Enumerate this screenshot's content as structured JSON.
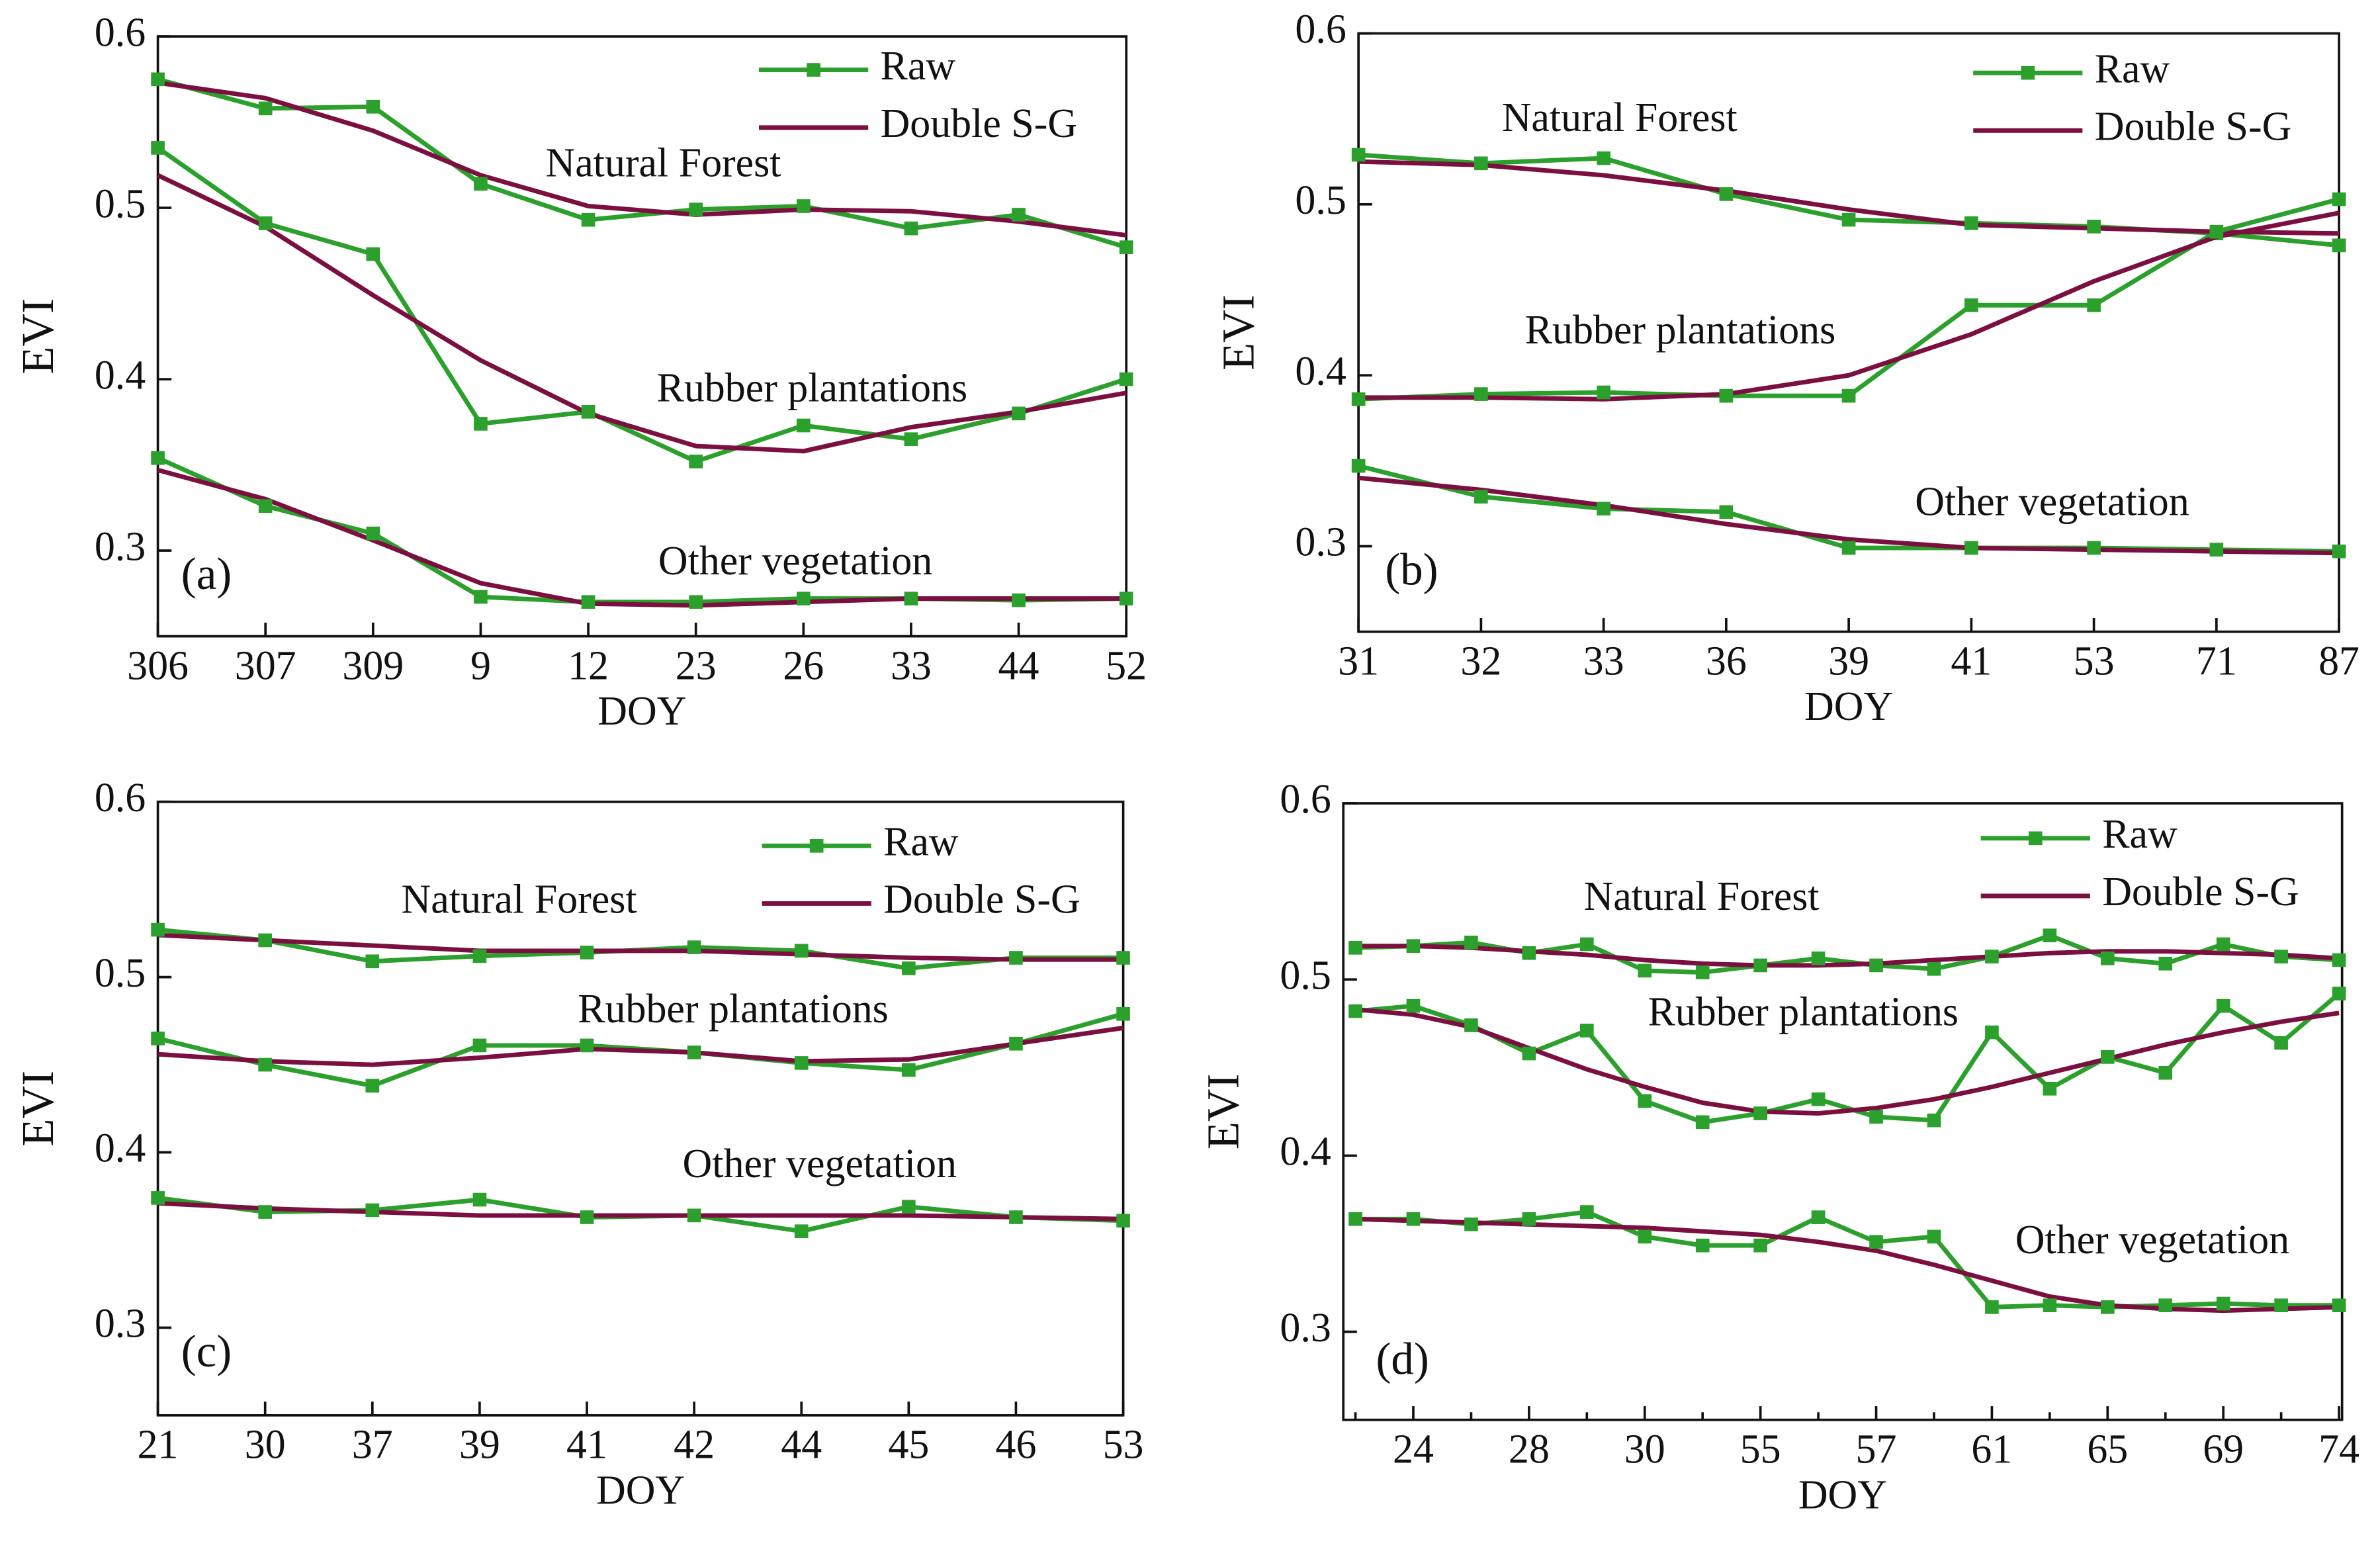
{
  "chart_data": [
    {
      "type": "line",
      "panel_label": "(a)",
      "x_label": "DOY",
      "y_label": "EVI",
      "categories": [
        "306",
        "307",
        "309",
        "9",
        "12",
        "23",
        "26",
        "33",
        "44",
        "52"
      ],
      "ylim": [
        0.25,
        0.6
      ],
      "yticks": [
        0.3,
        0.4,
        0.5,
        0.6
      ],
      "legend": [
        {
          "name": "Raw",
          "color": "#2ca02c",
          "marker": "square"
        },
        {
          "name": "Double S-G",
          "color": "#7b1040"
        }
      ],
      "series": [
        {
          "name": "Natural Forest",
          "raw": [
            0.575,
            0.558,
            0.559,
            0.514,
            0.493,
            0.499,
            0.501,
            0.488,
            0.496,
            0.477
          ],
          "double_sg": [
            0.573,
            0.564,
            0.545,
            0.519,
            0.501,
            0.496,
            0.499,
            0.498,
            0.492,
            0.484
          ]
        },
        {
          "name": "Rubber plantations",
          "raw": [
            0.535,
            0.491,
            0.473,
            0.374,
            0.381,
            0.352,
            0.373,
            0.365,
            0.38,
            0.4
          ],
          "double_sg": [
            0.519,
            0.489,
            0.449,
            0.411,
            0.38,
            0.361,
            0.358,
            0.372,
            0.381,
            0.392
          ]
        },
        {
          "name": "Other vegetation",
          "raw": [
            0.354,
            0.326,
            0.31,
            0.273,
            0.27,
            0.27,
            0.272,
            0.272,
            0.271,
            0.272
          ],
          "double_sg": [
            0.347,
            0.33,
            0.306,
            0.281,
            0.269,
            0.268,
            0.27,
            0.272,
            0.272,
            0.272
          ]
        }
      ]
    },
    {
      "type": "line",
      "panel_label": "(b)",
      "x_label": "DOY",
      "y_label": "EVI",
      "categories": [
        "31",
        "32",
        "33",
        "36",
        "39",
        "41",
        "53",
        "71",
        "87"
      ],
      "ylim": [
        0.25,
        0.6
      ],
      "yticks": [
        0.3,
        0.4,
        0.5,
        0.6
      ],
      "legend": [
        {
          "name": "Raw",
          "color": "#2ca02c",
          "marker": "square"
        },
        {
          "name": "Double S-G",
          "color": "#7b1040"
        }
      ],
      "series": [
        {
          "name": "Natural Forest",
          "raw": [
            0.529,
            0.524,
            0.527,
            0.506,
            0.491,
            0.489,
            0.487,
            0.483,
            0.476
          ],
          "double_sg": [
            0.525,
            0.523,
            0.517,
            0.508,
            0.497,
            0.488,
            0.486,
            0.484,
            0.483
          ]
        },
        {
          "name": "Rubber plantations",
          "raw": [
            0.386,
            0.389,
            0.39,
            0.388,
            0.388,
            0.441,
            0.441,
            0.484,
            0.503
          ],
          "double_sg": [
            0.387,
            0.387,
            0.386,
            0.389,
            0.4,
            0.424,
            0.455,
            0.481,
            0.495
          ]
        },
        {
          "name": "Other vegetation",
          "raw": [
            0.347,
            0.329,
            0.322,
            0.32,
            0.299,
            0.299,
            0.299,
            0.298,
            0.297
          ],
          "double_sg": [
            0.34,
            0.333,
            0.324,
            0.313,
            0.304,
            0.299,
            0.298,
            0.297,
            0.296
          ]
        }
      ]
    },
    {
      "type": "line",
      "panel_label": "(c)",
      "x_label": "DOY",
      "y_label": "EVI",
      "categories": [
        "21",
        "30",
        "37",
        "39",
        "41",
        "42",
        "44",
        "45",
        "46",
        "53"
      ],
      "ylim": [
        0.25,
        0.6
      ],
      "yticks": [
        0.3,
        0.4,
        0.5,
        0.6
      ],
      "legend": [
        {
          "name": "Raw",
          "color": "#2ca02c",
          "marker": "square"
        },
        {
          "name": "Double S-G",
          "color": "#7b1040"
        }
      ],
      "series": [
        {
          "name": "Natural Forest",
          "raw": [
            0.527,
            0.521,
            0.509,
            0.512,
            0.514,
            0.517,
            0.515,
            0.505,
            0.511,
            0.511
          ],
          "double_sg": [
            0.524,
            0.521,
            0.518,
            0.515,
            0.515,
            0.515,
            0.513,
            0.511,
            0.51,
            0.51
          ]
        },
        {
          "name": "Rubber plantations",
          "raw": [
            0.465,
            0.45,
            0.438,
            0.461,
            0.461,
            0.457,
            0.451,
            0.447,
            0.462,
            0.479
          ],
          "double_sg": [
            0.456,
            0.452,
            0.45,
            0.454,
            0.459,
            0.457,
            0.452,
            0.453,
            0.462,
            0.471
          ]
        },
        {
          "name": "Other vegetation",
          "raw": [
            0.374,
            0.366,
            0.367,
            0.373,
            0.363,
            0.364,
            0.355,
            0.369,
            0.363,
            0.361
          ],
          "double_sg": [
            0.371,
            0.368,
            0.366,
            0.364,
            0.364,
            0.364,
            0.364,
            0.364,
            0.363,
            0.362
          ]
        }
      ]
    },
    {
      "type": "line",
      "panel_label": "(d)",
      "x_label": "DOY",
      "y_label": "EVI",
      "categories": [
        null,
        "24",
        null,
        "28",
        null,
        "30",
        null,
        "55",
        null,
        "57",
        null,
        "61",
        null,
        "65",
        null,
        "69",
        null,
        "74"
      ],
      "ylim": [
        0.25,
        0.6
      ],
      "yticks": [
        0.3,
        0.4,
        0.5,
        0.6
      ],
      "legend": [
        {
          "name": "Raw",
          "color": "#2ca02c",
          "marker": "square"
        },
        {
          "name": "Double S-G",
          "color": "#7b1040"
        }
      ],
      "series": [
        {
          "name": "Natural Forest",
          "raw": [
            0.518,
            0.519,
            0.521,
            0.515,
            0.52,
            0.505,
            0.504,
            0.508,
            0.512,
            0.508,
            0.506,
            0.513,
            0.525,
            0.512,
            0.509,
            0.52,
            0.513,
            0.511
          ],
          "double_sg": [
            0.519,
            0.519,
            0.518,
            0.516,
            0.514,
            0.511,
            0.509,
            0.508,
            0.508,
            0.509,
            0.511,
            0.513,
            0.515,
            0.516,
            0.516,
            0.515,
            0.514,
            0.512
          ]
        },
        {
          "name": "Rubber plantations",
          "raw": [
            0.482,
            0.485,
            0.474,
            0.458,
            0.471,
            0.431,
            0.419,
            0.424,
            0.432,
            0.422,
            0.42,
            0.47,
            0.438,
            0.456,
            0.447,
            0.485,
            0.464,
            0.492
          ],
          "double_sg": [
            0.483,
            0.48,
            0.473,
            0.461,
            0.449,
            0.439,
            0.43,
            0.425,
            0.424,
            0.427,
            0.432,
            0.439,
            0.447,
            0.455,
            0.463,
            0.47,
            0.476,
            0.481
          ]
        },
        {
          "name": "Other vegetation",
          "raw": [
            0.364,
            0.364,
            0.361,
            0.364,
            0.368,
            0.354,
            0.349,
            0.349,
            0.365,
            0.351,
            0.354,
            0.314,
            0.315,
            0.314,
            0.315,
            0.316,
            0.315,
            0.315
          ],
          "double_sg": [
            0.364,
            0.363,
            0.362,
            0.361,
            0.36,
            0.359,
            0.357,
            0.355,
            0.351,
            0.346,
            0.338,
            0.329,
            0.32,
            0.315,
            0.313,
            0.312,
            0.313,
            0.314
          ]
        }
      ]
    }
  ]
}
